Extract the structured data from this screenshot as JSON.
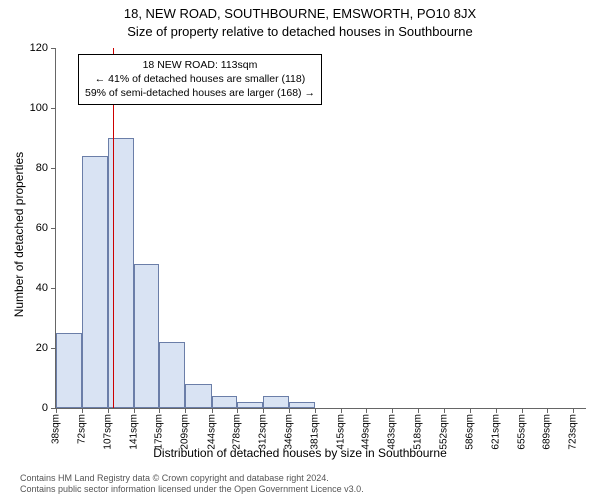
{
  "title_line1": "18, NEW ROAD, SOUTHBOURNE, EMSWORTH, PO10 8JX",
  "title_line2": "Size of property relative to detached houses in Southbourne",
  "y_axis_label": "Number of detached properties",
  "x_axis_label": "Distribution of detached houses by size in Southbourne",
  "chart": {
    "type": "histogram",
    "ylim": [
      0,
      120
    ],
    "ytick_step": 20,
    "xlim": [
      38,
      740
    ],
    "xticks": [
      38,
      72,
      107,
      141,
      175,
      209,
      244,
      278,
      312,
      346,
      381,
      415,
      449,
      483,
      518,
      552,
      586,
      621,
      655,
      689,
      723
    ],
    "xtick_suffix": "sqm",
    "bar_fill": "#d9e3f3",
    "bar_stroke": "#6b7ea8",
    "background_color": "#ffffff",
    "axis_color": "#666666",
    "bars": [
      {
        "x0": 38,
        "x1": 72,
        "count": 25
      },
      {
        "x0": 72,
        "x1": 107,
        "count": 84
      },
      {
        "x0": 107,
        "x1": 141,
        "count": 90
      },
      {
        "x0": 141,
        "x1": 175,
        "count": 48
      },
      {
        "x0": 175,
        "x1": 209,
        "count": 22
      },
      {
        "x0": 209,
        "x1": 244,
        "count": 8
      },
      {
        "x0": 244,
        "x1": 278,
        "count": 4
      },
      {
        "x0": 278,
        "x1": 312,
        "count": 2
      },
      {
        "x0": 312,
        "x1": 346,
        "count": 4
      },
      {
        "x0": 346,
        "x1": 381,
        "count": 2
      },
      {
        "x0": 381,
        "x1": 415,
        "count": 0
      },
      {
        "x0": 415,
        "x1": 449,
        "count": 0
      },
      {
        "x0": 449,
        "x1": 483,
        "count": 0
      },
      {
        "x0": 483,
        "x1": 518,
        "count": 0
      },
      {
        "x0": 518,
        "x1": 552,
        "count": 0
      },
      {
        "x0": 552,
        "x1": 586,
        "count": 0
      },
      {
        "x0": 586,
        "x1": 621,
        "count": 0
      },
      {
        "x0": 621,
        "x1": 655,
        "count": 0
      },
      {
        "x0": 655,
        "x1": 689,
        "count": 0
      },
      {
        "x0": 689,
        "x1": 723,
        "count": 0
      }
    ],
    "marker": {
      "x": 113,
      "color": "#cc0000",
      "width": 1.5
    }
  },
  "annotation": {
    "line1": "18 NEW ROAD: 113sqm",
    "line2": "← 41% of detached houses are smaller (118)",
    "line3": "59% of semi-detached houses are larger (168) →",
    "border_color": "#000000",
    "background": "#ffffff",
    "font_size": 10.5
  },
  "footer": {
    "line1": "Contains HM Land Registry data © Crown copyright and database right 2024.",
    "line2": "Contains public sector information licensed under the Open Government Licence v3.0."
  }
}
